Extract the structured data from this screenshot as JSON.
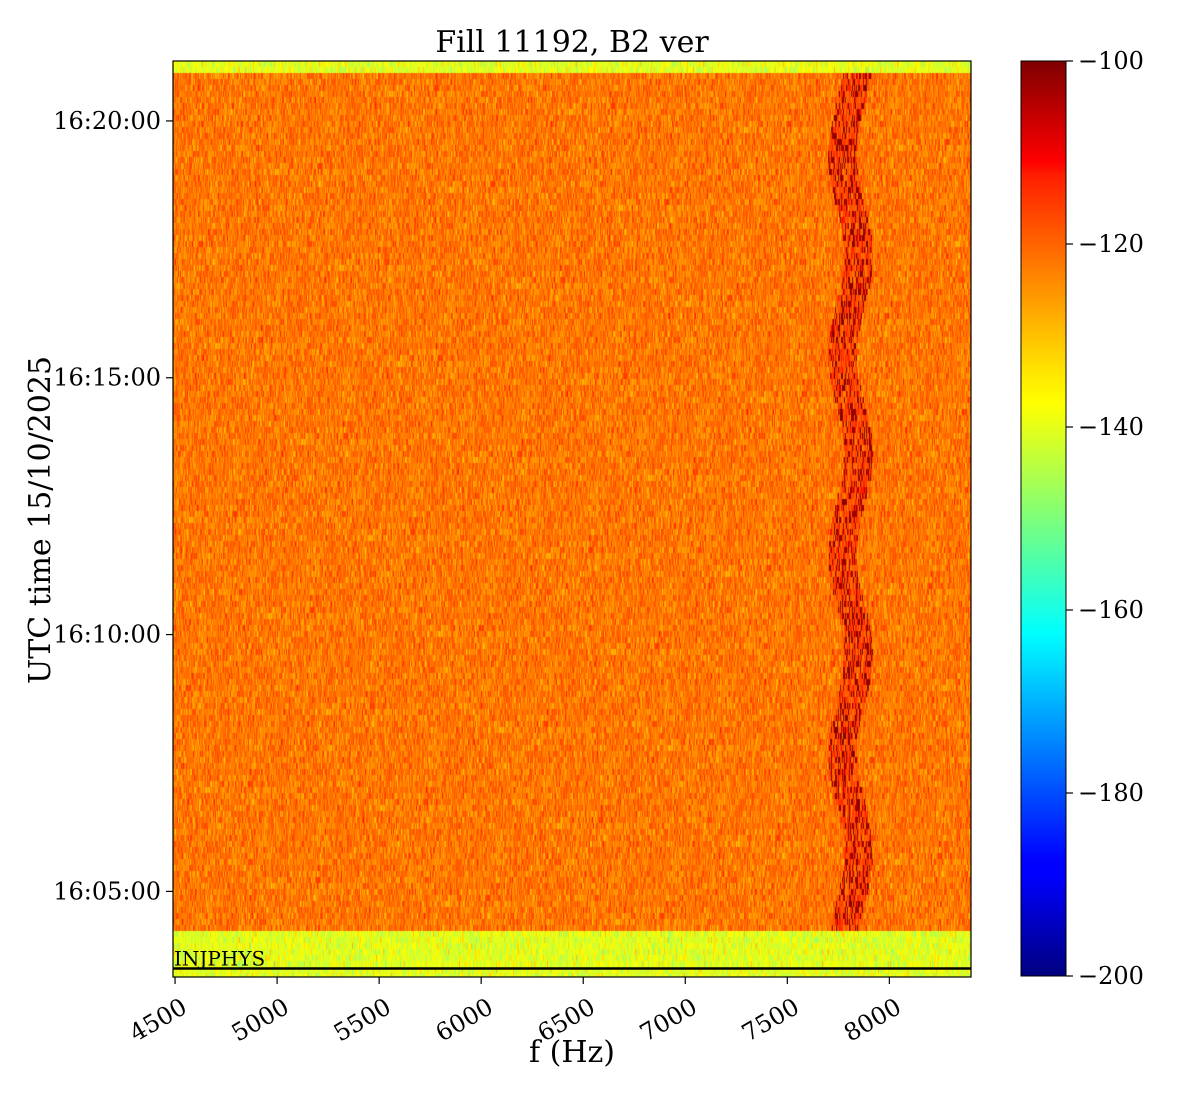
{
  "chart_data": {
    "type": "heatmap",
    "title": "Fill 11192, B2 ver",
    "xlabel": "f (Hz)",
    "ylabel": "UTC time 15/10/2025",
    "xlim": [
      4490,
      8400
    ],
    "ylim_time": [
      "16:03:20",
      "16:21:10"
    ],
    "x_ticks": [
      4500,
      5000,
      5500,
      6000,
      6500,
      7000,
      7500,
      8000
    ],
    "x_tick_labels": [
      "4500",
      "5000",
      "5500",
      "6000",
      "6500",
      "7000",
      "7500",
      "8000"
    ],
    "y_ticks": [
      "16:05:00",
      "16:10:00",
      "16:15:00",
      "16:20:00"
    ],
    "y_tick_labels": [
      "16:05:00",
      "16:10:00",
      "16:15:00",
      "16:20:00"
    ],
    "colorbar": {
      "colormap": "jet",
      "range": [
        -200,
        -100
      ],
      "ticks": [
        -100,
        -120,
        -140,
        -160,
        -180,
        -200
      ],
      "tick_labels": [
        "−100",
        "−120",
        "−140",
        "−160",
        "−180",
        "−200"
      ]
    },
    "background_level_db": -124,
    "quiet_level_db": -140,
    "quiet_periods": [
      {
        "start": "16:03:20",
        "end": "16:04:15"
      },
      {
        "start": "16:20:55",
        "end": "16:21:10"
      }
    ],
    "line_feature": {
      "f_start_hz": 7740,
      "f_end_hz": 7880,
      "t_start": "16:04:15",
      "t_end": "16:20:55",
      "level_db": -102
    },
    "annotation": {
      "text": "INJPHYS",
      "time": "16:03:30"
    }
  }
}
